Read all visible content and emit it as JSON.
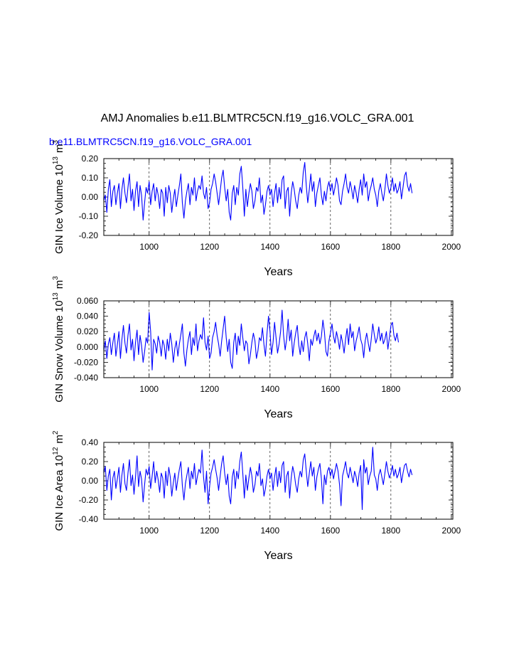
{
  "figure": {
    "title": "AMJ Anomalies b.e11.BLMTRC5CN.f19_g16.VOLC_GRA.001",
    "subtitle": "b.e11.BLMTRC5CN.f19_g16.VOLC_GRA.001",
    "subtitle_color": "#0000ff",
    "line_color": "#0000ff"
  },
  "chart_data": [
    {
      "type": "line",
      "xlabel": "Years",
      "ylabel": "GIN Ice Volume 10",
      "ylabel_exp": "13",
      "ylabel_unit": "m",
      "ylabel_unit_exp": "3",
      "xlim": [
        850,
        2005
      ],
      "ylim": [
        -0.2,
        0.2
      ],
      "x_ticks": [
        1000,
        1200,
        1400,
        1600,
        1800,
        2000
      ],
      "x_tick_labels": [
        "1000",
        "1200",
        "1400",
        "1600",
        "1800",
        "2000"
      ],
      "y_ticks": [
        -0.2,
        -0.1,
        0.0,
        0.1,
        0.2
      ],
      "y_tick_labels": [
        "-0.20",
        "-0.10",
        "0.00",
        "0.10",
        "0.20"
      ],
      "grid": "vertical dashed at major x ticks",
      "series": [
        {
          "x_start": 850,
          "x_step": 5,
          "values": [
            -0.02,
            0.01,
            -0.08,
            0.04,
            0.09,
            -0.05,
            0.03,
            0.06,
            -0.04,
            0.02,
            0.07,
            -0.06,
            0.04,
            0.1,
            0.02,
            -0.03,
            0.05,
            0.12,
            -0.02,
            0.04,
            -0.07,
            0.03,
            0.08,
            -0.05,
            0.06,
            0.01,
            -0.12,
            -0.03,
            0.05,
            0.02,
            0.08,
            -0.04,
            0.03,
            0.07,
            -0.02,
            0.05,
            0.01,
            -0.06,
            0.04,
            0.02,
            -0.1,
            0.05,
            -0.03,
            0.06,
            0.02,
            -0.08,
            -0.01,
            0.04,
            -0.05,
            0.01,
            0.06,
            0.12,
            -0.03,
            -0.11,
            -0.02,
            0.03,
            0.07,
            -0.04,
            0.05,
            0.01,
            0.1,
            -0.02,
            0.03,
            0.06,
            0.04,
            0.11,
            0.02,
            -0.01,
            0.05,
            -0.06,
            -0.03,
            0.04,
            0.07,
            0.12,
            0.08,
            0.02,
            -0.04,
            0.03,
            0.1,
            0.14,
            0.05,
            -0.02,
            0.04,
            -0.08,
            -0.12,
            0.02,
            0.06,
            -0.04,
            0.05,
            0.01,
            0.12,
            0.16,
            0.05,
            -0.1,
            0.04,
            -0.05,
            0.02,
            0.07,
            0.03,
            -0.06,
            -0.02,
            0.05,
            0.03,
            0.1,
            -0.03,
            0.01,
            -0.09,
            -0.04,
            0.03,
            0.06,
            0.01,
            0.04,
            -0.05,
            0.02,
            0.07,
            -0.03,
            0.05,
            -0.01,
            0.09,
            0.11,
            -0.06,
            0.03,
            0.05,
            -0.1,
            0.02,
            0.08,
            0.04,
            -0.02,
            -0.06,
            0.01,
            0.05,
            0.02,
            0.13,
            0.18,
            0.06,
            -0.03,
            0.04,
            0.12,
            0.03,
            0.08,
            -0.05,
            0.02,
            0.06,
            0.1,
            0.01,
            -0.04,
            0.03,
            -0.02,
            0.05,
            0.08,
            0.03,
            0.07,
            0.01,
            0.05,
            0.1,
            0.06,
            -0.02,
            -0.04,
            0.03,
            0.07,
            0.12,
            0.05,
            0.02,
            0.08,
            0.04,
            -0.01,
            0.06,
            0.02,
            -0.03,
            0.04,
            0.09,
            0.01,
            0.12,
            0.05,
            0.08,
            -0.02,
            0.03,
            0.06,
            0.1,
            0.04,
            0.01,
            -0.05,
            0.03,
            0.07,
            0.02,
            -0.02,
            0.04,
            0.12,
            0.06,
            0.02,
            0.05,
            0.1,
            0.03,
            0.07,
            0.02,
            0.04,
            0.08,
            -0.01,
            0.05,
            0.11,
            0.13,
            0.06,
            0.03,
            0.07,
            0.02
          ]
        }
      ]
    },
    {
      "type": "line",
      "xlabel": "Years",
      "ylabel": "GIN Snow Volume 10",
      "ylabel_exp": "13",
      "ylabel_unit": "m",
      "ylabel_unit_exp": "3",
      "xlim": [
        850,
        2005
      ],
      "ylim": [
        -0.04,
        0.06
      ],
      "x_ticks": [
        1000,
        1200,
        1400,
        1600,
        1800,
        2000
      ],
      "x_tick_labels": [
        "1000",
        "1200",
        "1400",
        "1600",
        "1800",
        "2000"
      ],
      "y_ticks": [
        -0.04,
        -0.02,
        0.0,
        0.02,
        0.04,
        0.06
      ],
      "y_tick_labels": [
        "-0.040",
        "-0.020",
        "0.000",
        "0.020",
        "0.040",
        "0.060"
      ],
      "grid": "vertical dashed at major x ticks",
      "series": [
        {
          "x_start": 850,
          "x_step": 5,
          "values": [
            -0.005,
            0.008,
            -0.015,
            0.004,
            0.012,
            -0.01,
            0.006,
            0.018,
            -0.012,
            0.003,
            0.02,
            -0.015,
            0.01,
            0.028,
            0.005,
            -0.008,
            0.015,
            0.03,
            -0.004,
            0.01,
            -0.018,
            0.006,
            0.022,
            -0.01,
            0.015,
            0.002,
            -0.02,
            -0.006,
            0.012,
            0.005,
            0.045,
            0.02,
            -0.03,
            0.01,
            0.004,
            -0.008,
            0.014,
            0.006,
            -0.012,
            0.009,
            0.002,
            -0.016,
            0.01,
            -0.005,
            0.018,
            0.004,
            -0.02,
            -0.002,
            0.008,
            -0.012,
            0.004,
            0.016,
            0.03,
            -0.008,
            -0.025,
            -0.004,
            0.01,
            0.02,
            -0.01,
            0.012,
            0.002,
            0.03,
            -0.005,
            0.008,
            0.016,
            0.01,
            0.038,
            0.006,
            -0.004,
            0.014,
            -0.015,
            -0.008,
            0.012,
            0.02,
            0.032,
            0.015,
            0.004,
            -0.012,
            0.008,
            0.024,
            0.04,
            0.012,
            -0.006,
            0.01,
            -0.02,
            -0.028,
            0.006,
            0.018,
            -0.01,
            0.014,
            0.002,
            0.03,
            0.012,
            -0.005,
            0.008,
            0.004,
            -0.022,
            -0.01,
            0.006,
            0.018,
            0.008,
            -0.015,
            -0.005,
            0.012,
            0.008,
            0.025,
            0.003,
            -0.012,
            0.018,
            0.04,
            0.02,
            -0.01,
            0.006,
            0.032,
            0.012,
            -0.008,
            0.004,
            0.02,
            0.048,
            0.015,
            -0.004,
            0.01,
            0.036,
            0.008,
            0.022,
            -0.012,
            0.005,
            0.018,
            0.028,
            0.003,
            -0.01,
            0.008,
            -0.006,
            0.012,
            0.02,
            0.004,
            -0.018,
            0.01,
            0.002,
            0.014,
            0.022,
            0.008,
            0.018,
            0.004,
            0.014,
            0.035,
            0.02,
            -0.006,
            -0.012,
            0.008,
            0.018,
            0.03,
            0.014,
            0.005,
            0.02,
            0.01,
            -0.003,
            0.016,
            0.006,
            -0.008,
            0.01,
            0.024,
            0.003,
            0.03,
            0.012,
            0.02,
            -0.005,
            0.008,
            0.016,
            0.026,
            0.01,
            0.003,
            -0.014,
            0.008,
            0.018,
            0.005,
            -0.006,
            0.01,
            0.03,
            0.016,
            0.005,
            0.012,
            0.026,
            0.008,
            0.018,
            0.004,
            0.01,
            0.02,
            -0.003,
            0.012,
            0.028,
            0.032,
            0.015,
            0.008,
            0.018,
            0.006
          ]
        }
      ]
    },
    {
      "type": "line",
      "xlabel": "Years",
      "ylabel": "GIN Ice Area 10",
      "ylabel_exp": "12",
      "ylabel_unit": "m",
      "ylabel_unit_exp": "2",
      "xlim": [
        850,
        2005
      ],
      "ylim": [
        -0.4,
        0.4
      ],
      "x_ticks": [
        1000,
        1200,
        1400,
        1600,
        1800,
        2000
      ],
      "x_tick_labels": [
        "1000",
        "1200",
        "1400",
        "1600",
        "1800",
        "2000"
      ],
      "y_ticks": [
        -0.4,
        -0.2,
        0.0,
        0.2,
        0.4
      ],
      "y_tick_labels": [
        "-0.40",
        "-0.20",
        "0.00",
        "0.20",
        "0.40"
      ],
      "grid": "vertical dashed at major x ticks",
      "series": [
        {
          "x_start": 850,
          "x_step": 5,
          "values": [
            0.08,
            0.15,
            -0.1,
            0.05,
            0.12,
            -0.2,
            0.03,
            0.1,
            -0.08,
            0.02,
            0.14,
            -0.12,
            0.06,
            0.18,
            -0.03,
            -0.1,
            0.08,
            0.22,
            -0.05,
            0.06,
            -0.14,
            0.04,
            0.26,
            -0.06,
            0.1,
            0.02,
            -0.22,
            -0.04,
            0.12,
            0.06,
            0.15,
            -0.08,
            0.05,
            0.2,
            -0.02,
            0.1,
            0.01,
            -0.12,
            0.08,
            0.03,
            -0.18,
            0.1,
            -0.05,
            0.14,
            0.04,
            -0.16,
            -0.02,
            0.08,
            -0.1,
            0.02,
            0.12,
            0.2,
            -0.05,
            -0.2,
            -0.03,
            0.06,
            0.14,
            -0.08,
            0.1,
            0.02,
            0.18,
            -0.04,
            0.05,
            0.12,
            0.08,
            0.32,
            0.04,
            -0.12,
            0.1,
            -0.24,
            -0.06,
            0.08,
            0.14,
            0.22,
            0.12,
            0.03,
            -0.1,
            0.05,
            0.18,
            0.26,
            0.08,
            -0.04,
            0.07,
            -0.16,
            -0.24,
            0.04,
            0.12,
            -0.08,
            0.1,
            0.02,
            0.2,
            0.3,
            0.08,
            -0.18,
            0.06,
            -0.1,
            0.03,
            0.14,
            0.05,
            -0.12,
            -0.04,
            0.1,
            0.05,
            0.18,
            -0.05,
            0.02,
            -0.16,
            -0.08,
            0.05,
            0.12,
            0.02,
            0.08,
            -0.1,
            0.04,
            0.14,
            -0.06,
            0.1,
            -0.02,
            0.16,
            0.2,
            -0.12,
            0.05,
            0.1,
            -0.18,
            0.03,
            0.15,
            0.08,
            -0.04,
            -0.12,
            0.02,
            0.1,
            0.04,
            0.22,
            0.28,
            0.1,
            -0.06,
            0.08,
            0.2,
            0.05,
            0.14,
            -0.1,
            0.04,
            0.12,
            0.18,
            0.02,
            -0.24,
            0.06,
            -0.04,
            0.1,
            0.14,
            0.05,
            0.12,
            0.02,
            0.1,
            0.18,
            0.1,
            -0.04,
            -0.26,
            0.05,
            0.12,
            0.2,
            0.08,
            0.03,
            0.14,
            0.06,
            -0.02,
            0.1,
            0.04,
            -0.06,
            0.08,
            0.16,
            -0.3,
            0.22,
            0.08,
            0.14,
            -0.04,
            0.05,
            0.1,
            0.35,
            0.06,
            0.02,
            -0.1,
            0.06,
            0.12,
            0.04,
            -0.04,
            0.08,
            0.2,
            0.1,
            0.03,
            0.08,
            0.16,
            0.05,
            0.12,
            0.03,
            0.07,
            0.14,
            -0.02,
            0.08,
            0.16,
            0.18,
            0.1,
            0.04,
            0.12,
            0.06
          ]
        }
      ]
    }
  ]
}
